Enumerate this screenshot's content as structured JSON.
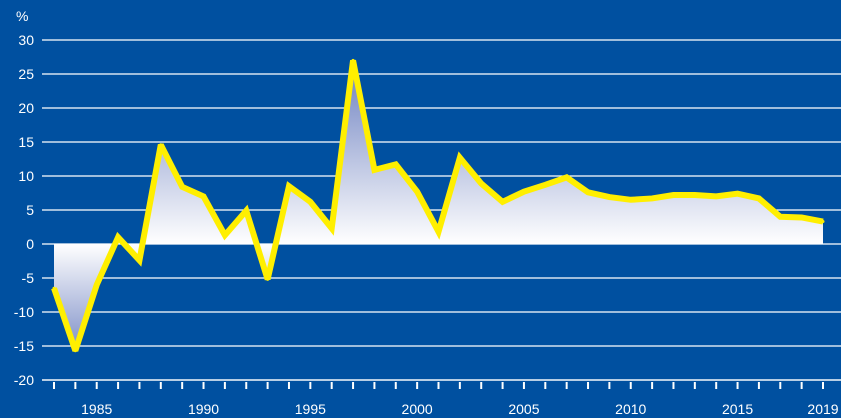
{
  "chart_data": {
    "type": "area",
    "unit_label": "%",
    "x": [
      1983,
      1984,
      1985,
      1986,
      1987,
      1988,
      1989,
      1990,
      1991,
      1992,
      1993,
      1994,
      1995,
      1996,
      1997,
      1998,
      1999,
      2000,
      2001,
      2002,
      2003,
      2004,
      2005,
      2006,
      2007,
      2008,
      2009,
      2010,
      2011,
      2012,
      2013,
      2014,
      2015,
      2016,
      2017,
      2018,
      2019
    ],
    "values": [
      -6.5,
      -15.7,
      -6,
      1,
      -2.4,
      14.6,
      8.4,
      7,
      1.3,
      4.9,
      -5.2,
      8.5,
      6.2,
      2.3,
      27,
      10.9,
      11.7,
      7.7,
      1.8,
      12.7,
      8.9,
      6.2,
      7.7,
      8.7,
      9.8,
      7.6,
      6.9,
      6.5,
      6.7,
      7.2,
      7.2,
      7,
      7.4,
      6.7,
      4,
      3.9,
      3.3
    ],
    "x_tick_labels": [
      "1985",
      "1990",
      "1995",
      "2000",
      "2005",
      "2010",
      "2015",
      "2019"
    ],
    "x_tick_values": [
      1985,
      1990,
      1995,
      2000,
      2005,
      2010,
      2015,
      2019
    ],
    "y_tick_labels": [
      "30",
      "25",
      "20",
      "15",
      "10",
      "5",
      "0",
      "-5",
      "-10",
      "-15",
      "-20"
    ],
    "y_tick_values": [
      30,
      25,
      20,
      15,
      10,
      5,
      0,
      -5,
      -10,
      -15,
      -20
    ],
    "ylim": [
      -20,
      30
    ],
    "xlim": [
      1983,
      2019
    ],
    "grid": true,
    "colors": {
      "background": "#0050a0",
      "line": "#ffef00",
      "grid": "#ffffff",
      "fill_dark": "#5a70b8",
      "fill_light": "#ffffff"
    }
  }
}
